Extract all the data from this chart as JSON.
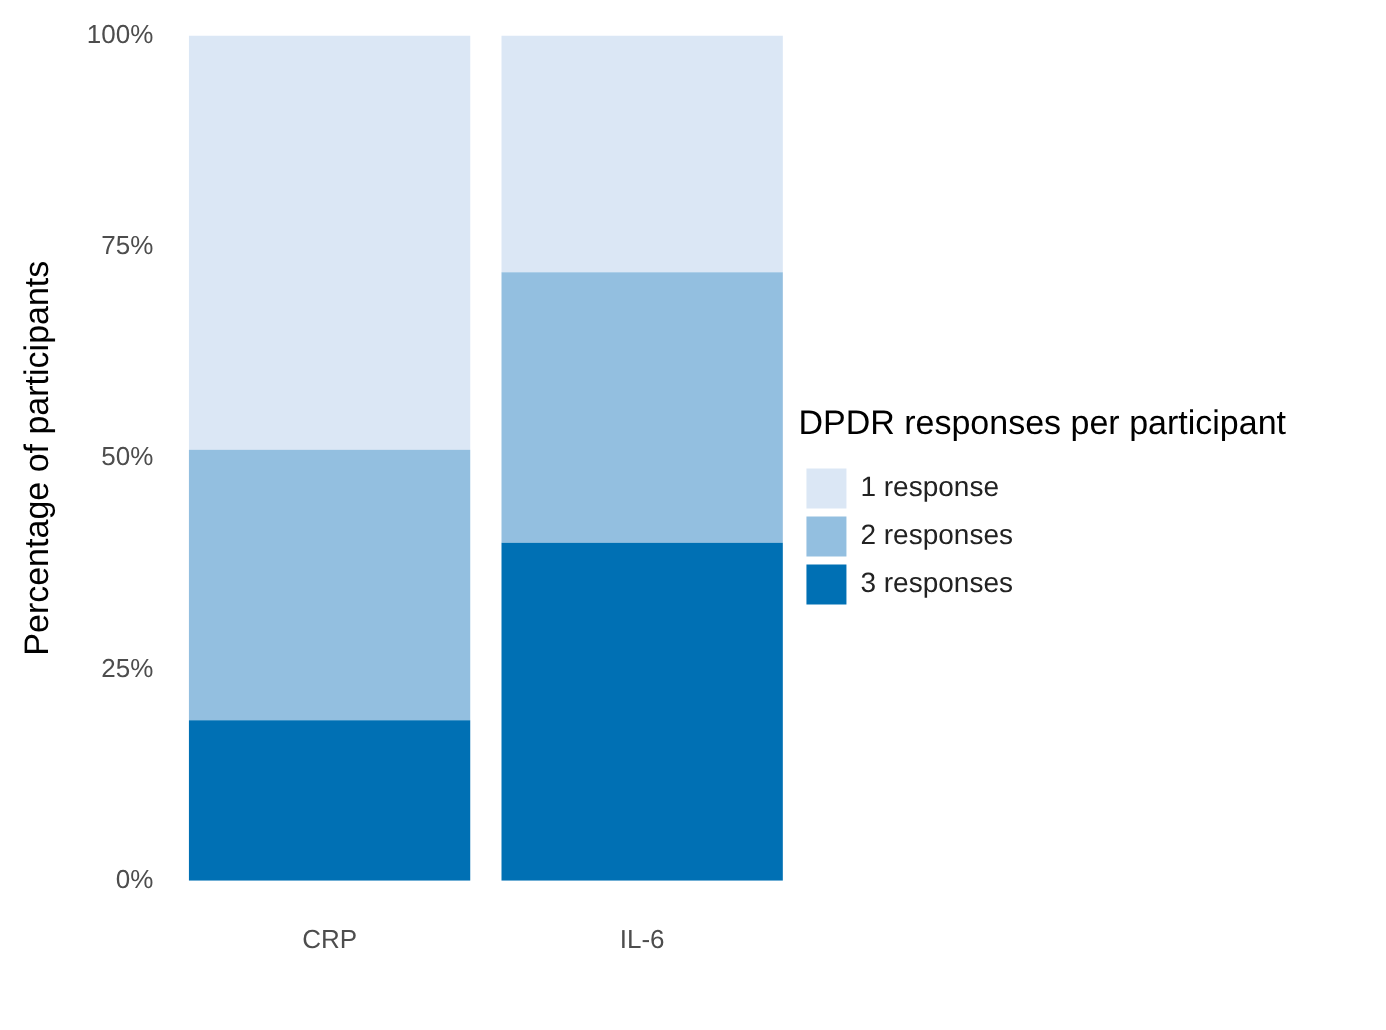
{
  "chart_data": {
    "type": "bar",
    "stacked": true,
    "categories": [
      "CRP",
      "IL-6"
    ],
    "ylabel": "Percentage of participants",
    "legend_title": "DPDR responses per participant",
    "legend": "right",
    "grid": false,
    "ylim": [
      0,
      100
    ],
    "yticks": [
      {
        "value": 0,
        "label": "0%"
      },
      {
        "value": 25,
        "label": "25%"
      },
      {
        "value": 50,
        "label": "50%"
      },
      {
        "value": 75,
        "label": "75%"
      },
      {
        "value": 100,
        "label": "100%"
      }
    ],
    "series": [
      {
        "name": "3 responses",
        "color": "#0070b4",
        "values": [
          19,
          40
        ]
      },
      {
        "name": "2 responses",
        "color": "#93bfe0",
        "values": [
          32,
          32
        ]
      },
      {
        "name": "1 response",
        "color": "#dbe7f5",
        "values": [
          49,
          28
        ]
      }
    ]
  }
}
